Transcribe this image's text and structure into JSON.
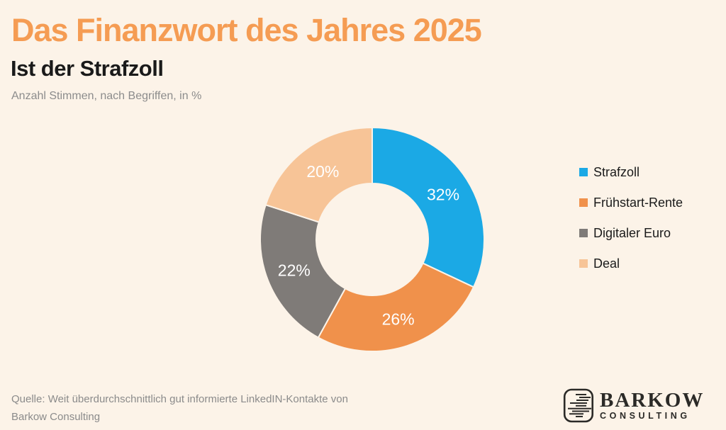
{
  "page": {
    "background_color": "#FCF3E8",
    "header": {
      "title": "Das Finanzwort des Jahres 2025",
      "title_color": "#F59C53",
      "subtitle": "Ist der Strafzoll",
      "note": "Anzahl Stimmen, nach Begriffen, in %"
    },
    "footer": {
      "source_line1": "Quelle: Weit überdurchschnittlich gut informierte LinkedIN-Kontakte von",
      "source_line2": "Barkow Consulting",
      "logo": {
        "name": "BARKOW",
        "tagline": "CONSULTING",
        "color": "#2B2A27"
      }
    }
  },
  "chart_data": {
    "type": "pie",
    "subtype": "donut",
    "title": "Das Finanzwort des Jahres 2025",
    "subtitle": "Ist der Strafzoll",
    "unit": "%",
    "start_angle_deg": 0,
    "direction": "clockwise",
    "inner_radius_ratio": 0.5,
    "legend_position": "right",
    "label_color": "#FFFFFF",
    "categories": [
      "Strafzoll",
      "Frühstart-Rente",
      "Digitaler Euro",
      "Deal"
    ],
    "values": [
      32,
      26,
      22,
      20
    ],
    "labels": [
      "32%",
      "26%",
      "22%",
      "20%"
    ],
    "colors": [
      "#1BA9E5",
      "#F0914B",
      "#7F7B78",
      "#F7C497"
    ]
  }
}
